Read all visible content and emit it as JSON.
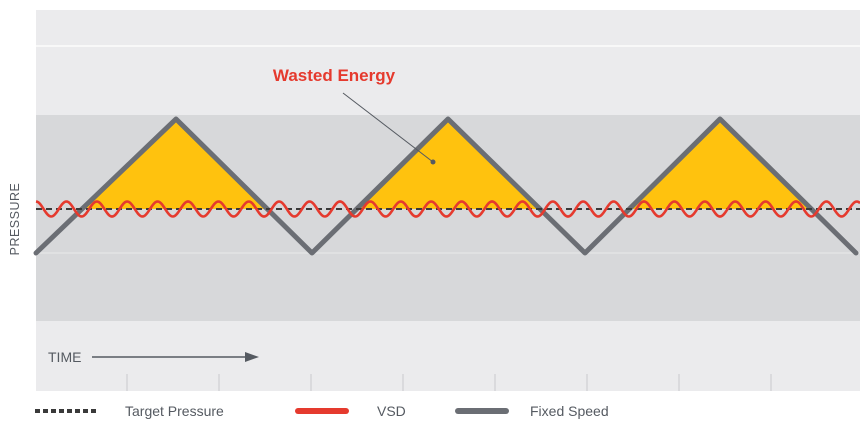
{
  "labels": {
    "callout": "Wasted Energy",
    "y_axis": "PRESSURE",
    "x_axis": "TIME"
  },
  "legend": {
    "target": "Target Pressure",
    "vsd": "VSD",
    "fixed": "Fixed Speed"
  },
  "colors": {
    "band_light": "#ebebed",
    "band_dark": "#d7d8da",
    "wasted_fill": "#ffc20e",
    "vsd_line": "#e53a2e",
    "fixed_line": "#6b6e74",
    "target_line": "#3a3a3a",
    "callout_text": "#e53a2e",
    "label_text": "#555a61"
  }
}
